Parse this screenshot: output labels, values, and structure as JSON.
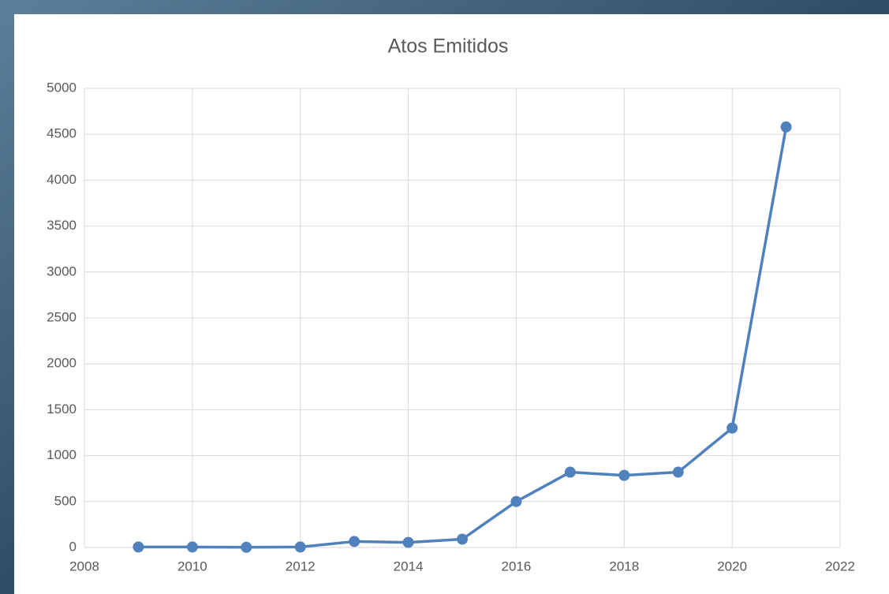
{
  "chart_data": {
    "type": "line",
    "title": "Atos Emitidos",
    "x": [
      2009,
      2010,
      2011,
      2012,
      2013,
      2014,
      2015,
      2016,
      2017,
      2018,
      2019,
      2020,
      2021
    ],
    "series": [
      {
        "color": "#4f81bd",
        "values": [
          5,
          5,
          2,
          5,
          65,
          55,
          90,
          500,
          820,
          785,
          820,
          1300,
          4580
        ]
      }
    ],
    "xlim": [
      2008,
      2022
    ],
    "xticks": [
      2008,
      2010,
      2012,
      2014,
      2016,
      2018,
      2020,
      2022
    ],
    "ylim": [
      0,
      5000
    ],
    "yticks": [
      0,
      500,
      1000,
      1500,
      2000,
      2500,
      3000,
      3500,
      4000,
      4500,
      5000
    ],
    "grid": true
  }
}
